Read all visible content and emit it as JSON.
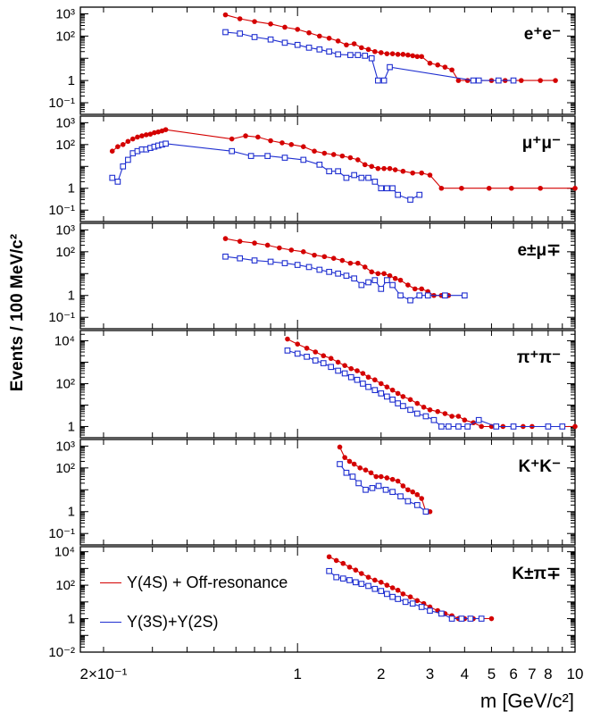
{
  "figure": {
    "ylabel": "Events / 100 MeV/c²",
    "xlabel": "m [GeV/c²]"
  },
  "legend": [
    {
      "label": "Υ(4S) + Off-resonance",
      "color": "#d40000"
    },
    {
      "label": "Υ(3S)+Υ(2S)",
      "color": "#1f2fd0"
    }
  ],
  "chart_data": [
    {
      "type": "scatter",
      "panel_label": "e⁺e⁻",
      "ylim": [
        0.03,
        2000
      ],
      "xlim": [
        0.165,
        10
      ],
      "xscale": "log",
      "yscale": "log",
      "yticks": [
        "10⁻¹",
        "1",
        "10",
        "10²",
        "10³"
      ],
      "series": [
        {
          "name": "Υ(4S) + Off-resonance",
          "marker": "filled-circle",
          "color": "#d40000",
          "x": [
            0.55,
            0.62,
            0.7,
            0.8,
            0.9,
            1.0,
            1.1,
            1.2,
            1.3,
            1.4,
            1.5,
            1.6,
            1.7,
            1.8,
            1.9,
            2.0,
            2.1,
            2.2,
            2.3,
            2.4,
            2.5,
            2.6,
            2.7,
            2.8,
            3.0,
            3.2,
            3.4,
            3.6,
            3.8,
            4.1,
            4.4,
            5.0,
            5.6,
            6.4,
            7.5,
            8.5
          ],
          "y": [
            900,
            600,
            450,
            350,
            250,
            200,
            140,
            100,
            80,
            60,
            40,
            45,
            30,
            25,
            20,
            18,
            16,
            16,
            15,
            15,
            14,
            13,
            12,
            12,
            6,
            5,
            4,
            3,
            1,
            1,
            1,
            1,
            1,
            1,
            1,
            1
          ]
        },
        {
          "name": "Υ(3S)+Υ(2S)",
          "marker": "open-square",
          "color": "#1f2fd0",
          "x": [
            0.55,
            0.62,
            0.7,
            0.8,
            0.9,
            1.0,
            1.1,
            1.2,
            1.3,
            1.4,
            1.55,
            1.65,
            1.75,
            1.85,
            1.95,
            2.05,
            2.15,
            4.3,
            4.5,
            5.3,
            6.0
          ],
          "y": [
            150,
            130,
            90,
            70,
            50,
            40,
            30,
            25,
            20,
            15,
            14,
            14,
            13,
            10,
            1,
            1,
            4,
            1,
            1,
            1,
            1
          ]
        }
      ]
    },
    {
      "type": "scatter",
      "panel_label": "μ⁺μ⁻",
      "ylim": [
        0.03,
        2000
      ],
      "xlim": [
        0.165,
        10
      ],
      "xscale": "log",
      "yscale": "log",
      "yticks": [
        "10⁻¹",
        "1",
        "10",
        "10²",
        "10³"
      ],
      "series": [
        {
          "name": "Υ(4S) + Off-resonance",
          "marker": "filled-circle",
          "color": "#d40000",
          "x": [
            0.215,
            0.225,
            0.235,
            0.245,
            0.255,
            0.265,
            0.275,
            0.285,
            0.295,
            0.305,
            0.315,
            0.325,
            0.335,
            0.58,
            0.65,
            0.72,
            0.8,
            0.88,
            0.95,
            1.05,
            1.15,
            1.25,
            1.35,
            1.45,
            1.55,
            1.65,
            1.75,
            1.85,
            1.95,
            2.05,
            2.15,
            2.25,
            2.4,
            2.6,
            2.8,
            3.0,
            3.3,
            3.9,
            4.9,
            5.9,
            7.5,
            10
          ],
          "y": [
            50,
            80,
            100,
            140,
            180,
            220,
            250,
            280,
            300,
            350,
            380,
            420,
            480,
            180,
            250,
            220,
            150,
            120,
            100,
            80,
            50,
            40,
            35,
            30,
            25,
            20,
            12,
            10,
            8,
            8,
            8,
            7,
            6,
            5,
            5,
            4,
            1,
            1,
            1,
            1,
            1,
            1
          ]
        },
        {
          "name": "Υ(3S)+Υ(2S)",
          "marker": "open-square",
          "color": "#1f2fd0",
          "x": [
            0.215,
            0.225,
            0.235,
            0.245,
            0.255,
            0.265,
            0.275,
            0.285,
            0.295,
            0.305,
            0.315,
            0.325,
            0.335,
            0.58,
            0.68,
            0.78,
            0.9,
            1.05,
            1.2,
            1.3,
            1.4,
            1.5,
            1.6,
            1.7,
            1.8,
            1.9,
            2.0,
            2.1,
            2.2,
            2.3,
            2.55,
            2.75
          ],
          "y": [
            3,
            2,
            10,
            20,
            40,
            50,
            60,
            60,
            70,
            80,
            90,
            100,
            110,
            50,
            30,
            30,
            25,
            20,
            12,
            6,
            6,
            3,
            4,
            3,
            3,
            2,
            1,
            1,
            1,
            0.5,
            0.3,
            0.5
          ]
        }
      ]
    },
    {
      "type": "scatter",
      "panel_label": "e±μ∓",
      "ylim": [
        0.03,
        2000
      ],
      "xlim": [
        0.165,
        10
      ],
      "xscale": "log",
      "yscale": "log",
      "yticks": [
        "10⁻¹",
        "1",
        "10",
        "10²",
        "10³"
      ],
      "series": [
        {
          "name": "Υ(4S) + Off-resonance",
          "marker": "filled-circle",
          "color": "#d40000",
          "x": [
            0.55,
            0.62,
            0.7,
            0.78,
            0.86,
            0.95,
            1.05,
            1.15,
            1.25,
            1.35,
            1.45,
            1.55,
            1.65,
            1.75,
            1.85,
            1.95,
            2.05,
            2.15,
            2.25,
            2.35,
            2.5,
            2.65,
            2.8,
            2.95,
            3.1,
            3.3,
            3.5
          ],
          "y": [
            400,
            300,
            250,
            200,
            150,
            120,
            100,
            70,
            60,
            50,
            40,
            30,
            30,
            20,
            12,
            10,
            10,
            8,
            6,
            5,
            3,
            2,
            2,
            1.5,
            1,
            1,
            1
          ]
        },
        {
          "name": "Υ(3S)+Υ(2S)",
          "marker": "open-square",
          "color": "#1f2fd0",
          "x": [
            0.55,
            0.62,
            0.7,
            0.8,
            0.9,
            1.0,
            1.1,
            1.2,
            1.3,
            1.4,
            1.5,
            1.6,
            1.7,
            1.8,
            1.9,
            2.0,
            2.1,
            2.2,
            2.35,
            2.55,
            2.75,
            2.95,
            3.4,
            4.0
          ],
          "y": [
            60,
            50,
            40,
            35,
            30,
            25,
            20,
            15,
            12,
            10,
            8,
            6,
            3,
            4,
            5,
            2,
            5,
            3,
            1,
            0.6,
            1,
            1,
            1,
            1
          ]
        }
      ]
    },
    {
      "type": "scatter",
      "panel_label": "π⁺π⁻",
      "ylim": [
        0.3,
        30000
      ],
      "xlim": [
        0.165,
        10
      ],
      "xscale": "log",
      "yscale": "log",
      "yticks": [
        "1",
        "10²",
        "10⁴"
      ],
      "series": [
        {
          "name": "Υ(4S) + Off-resonance",
          "marker": "filled-circle",
          "color": "#d40000",
          "x": [
            0.92,
            1.0,
            1.08,
            1.16,
            1.24,
            1.32,
            1.4,
            1.48,
            1.56,
            1.64,
            1.72,
            1.8,
            1.9,
            2.0,
            2.1,
            2.2,
            2.3,
            2.4,
            2.55,
            2.7,
            2.85,
            3.0,
            3.2,
            3.4,
            3.6,
            3.8,
            4.0,
            4.3,
            4.6,
            5.0,
            5.5,
            6.0,
            6.5,
            7.0,
            8.0,
            9.0,
            10.0
          ],
          "y": [
            12000,
            7000,
            4500,
            3000,
            2000,
            1500,
            1000,
            700,
            500,
            400,
            300,
            200,
            150,
            100,
            70,
            50,
            35,
            25,
            18,
            12,
            8,
            6,
            5,
            4,
            3,
            3,
            2,
            1.5,
            1,
            1,
            1,
            1,
            1,
            1,
            1,
            1,
            1
          ]
        },
        {
          "name": "Υ(3S)+Υ(2S)",
          "marker": "open-square",
          "color": "#1f2fd0",
          "x": [
            0.92,
            1.0,
            1.08,
            1.16,
            1.24,
            1.32,
            1.4,
            1.48,
            1.56,
            1.64,
            1.72,
            1.8,
            1.9,
            2.0,
            2.1,
            2.2,
            2.3,
            2.4,
            2.55,
            2.7,
            2.9,
            3.1,
            3.3,
            3.5,
            3.8,
            4.1,
            4.5,
            5.2,
            6.0,
            8.0,
            9.0
          ],
          "y": [
            3500,
            2500,
            1800,
            1200,
            900,
            600,
            400,
            300,
            200,
            150,
            100,
            70,
            50,
            35,
            25,
            18,
            12,
            9,
            6,
            4,
            3,
            2,
            1,
            1,
            1,
            1,
            2,
            1,
            1,
            1,
            1
          ]
        }
      ]
    },
    {
      "type": "scatter",
      "panel_label": "K⁺K⁻",
      "ylim": [
        0.03,
        2000
      ],
      "xlim": [
        0.165,
        10
      ],
      "xscale": "log",
      "yscale": "log",
      "yticks": [
        "10⁻¹",
        "1",
        "10",
        "10²",
        "10³"
      ],
      "series": [
        {
          "name": "Υ(4S) + Off-resonance",
          "marker": "filled-circle",
          "color": "#d40000",
          "x": [
            1.42,
            1.48,
            1.54,
            1.6,
            1.68,
            1.76,
            1.84,
            1.92,
            2.0,
            2.1,
            2.2,
            2.3,
            2.4,
            2.5,
            2.6,
            2.7,
            2.8,
            2.9,
            3.0
          ],
          "y": [
            900,
            300,
            200,
            150,
            100,
            80,
            60,
            40,
            40,
            35,
            30,
            25,
            15,
            10,
            8,
            6,
            4,
            1,
            1
          ]
        },
        {
          "name": "Υ(3S)+Υ(2S)",
          "marker": "open-square",
          "color": "#1f2fd0",
          "x": [
            1.42,
            1.5,
            1.58,
            1.66,
            1.76,
            1.86,
            1.96,
            2.08,
            2.2,
            2.35,
            2.5,
            2.7,
            2.9
          ],
          "y": [
            150,
            60,
            40,
            20,
            10,
            12,
            15,
            10,
            8,
            5,
            3,
            2,
            1
          ]
        }
      ]
    },
    {
      "type": "scatter",
      "panel_label": "K±π∓",
      "ylim": [
        0.01,
        20000
      ],
      "xlim": [
        0.165,
        10
      ],
      "xscale": "log",
      "yscale": "log",
      "yticks": [
        "10⁻²",
        "1",
        "10²",
        "10⁴"
      ],
      "series": [
        {
          "name": "Υ(4S) + Off-resonance",
          "marker": "filled-circle",
          "color": "#d40000",
          "x": [
            1.3,
            1.38,
            1.46,
            1.54,
            1.62,
            1.7,
            1.8,
            1.9,
            2.0,
            2.1,
            2.2,
            2.3,
            2.4,
            2.55,
            2.7,
            2.85,
            3.0,
            3.2,
            3.4,
            3.6,
            3.8,
            4.0,
            4.3,
            4.6,
            5.0
          ],
          "y": [
            5000,
            3000,
            2000,
            1200,
            800,
            500,
            300,
            200,
            150,
            100,
            70,
            50,
            30,
            20,
            12,
            8,
            5,
            3,
            2,
            1.5,
            1,
            1,
            1,
            1,
            1
          ]
        },
        {
          "name": "Υ(3S)+Υ(2S)",
          "marker": "open-square",
          "color": "#1f2fd0",
          "x": [
            1.3,
            1.38,
            1.46,
            1.54,
            1.62,
            1.7,
            1.8,
            1.9,
            2.0,
            2.1,
            2.2,
            2.3,
            2.45,
            2.6,
            2.8,
            3.0,
            3.3,
            3.6,
            3.9,
            4.2,
            4.6
          ],
          "y": [
            700,
            300,
            250,
            200,
            150,
            120,
            90,
            60,
            45,
            30,
            20,
            15,
            10,
            8,
            5,
            3,
            2,
            1,
            1,
            1,
            1
          ]
        }
      ]
    }
  ],
  "x_axis": {
    "tick_labels": [
      "2×10⁻¹",
      "1",
      "2",
      "3",
      "4",
      "5",
      "6",
      "7",
      "8",
      "10"
    ]
  }
}
